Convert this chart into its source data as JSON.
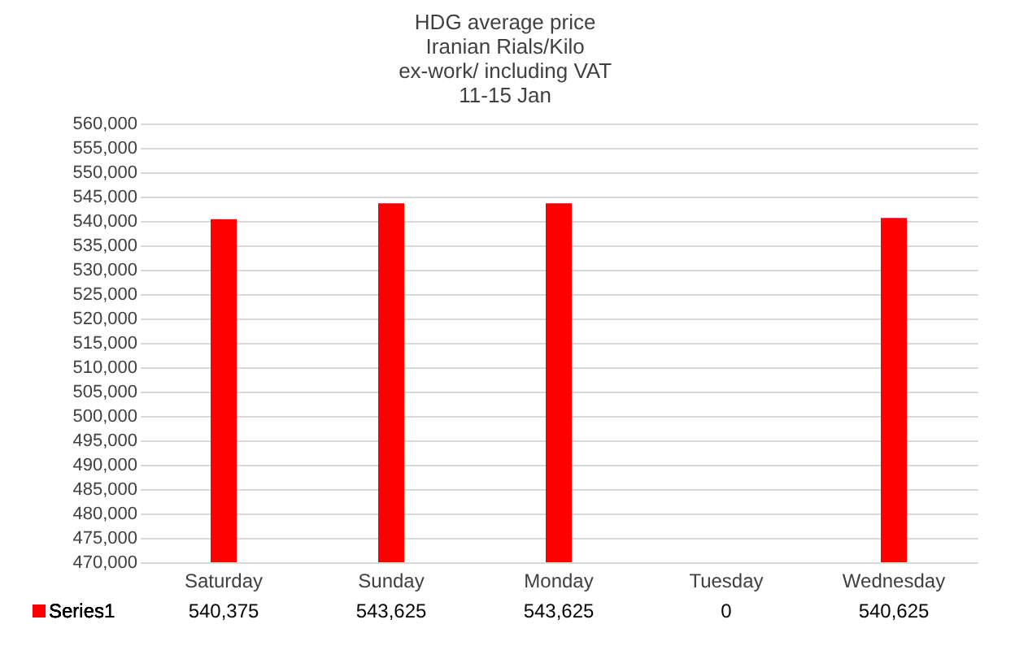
{
  "chart_data": {
    "type": "bar",
    "title": "HDG average  price\nIranian Rials/Kilo\nex-work/ including VAT\n11-15 Jan",
    "categories": [
      "Saturday",
      "Sunday",
      "Monday",
      "Tuesday",
      "Wednesday"
    ],
    "series": [
      {
        "name": "Series1",
        "color": "#ff0000",
        "values": [
          540375,
          543625,
          543625,
          null,
          540625
        ],
        "value_labels": [
          "540,375",
          "543,625",
          "543,625",
          "0",
          "540,625"
        ]
      }
    ],
    "ylim": [
      470000,
      560000
    ],
    "yticks": [
      {
        "value": 470000,
        "label": "470,000"
      },
      {
        "value": 475000,
        "label": "475,000"
      },
      {
        "value": 480000,
        "label": "480,000"
      },
      {
        "value": 485000,
        "label": "485,000"
      },
      {
        "value": 490000,
        "label": "490,000"
      },
      {
        "value": 495000,
        "label": "495,000"
      },
      {
        "value": 500000,
        "label": "500,000"
      },
      {
        "value": 505000,
        "label": "505,000"
      },
      {
        "value": 510000,
        "label": "510,000"
      },
      {
        "value": 515000,
        "label": "515,000"
      },
      {
        "value": 520000,
        "label": "520,000"
      },
      {
        "value": 525000,
        "label": "525,000"
      },
      {
        "value": 530000,
        "label": "530,000"
      },
      {
        "value": 535000,
        "label": "535,000"
      },
      {
        "value": 540000,
        "label": "540,000"
      },
      {
        "value": 545000,
        "label": "545,000"
      },
      {
        "value": 550000,
        "label": "550,000"
      },
      {
        "value": 555000,
        "label": "555,000"
      },
      {
        "value": 560000,
        "label": "560,000"
      }
    ],
    "grid": "y",
    "legend": "bottom"
  }
}
